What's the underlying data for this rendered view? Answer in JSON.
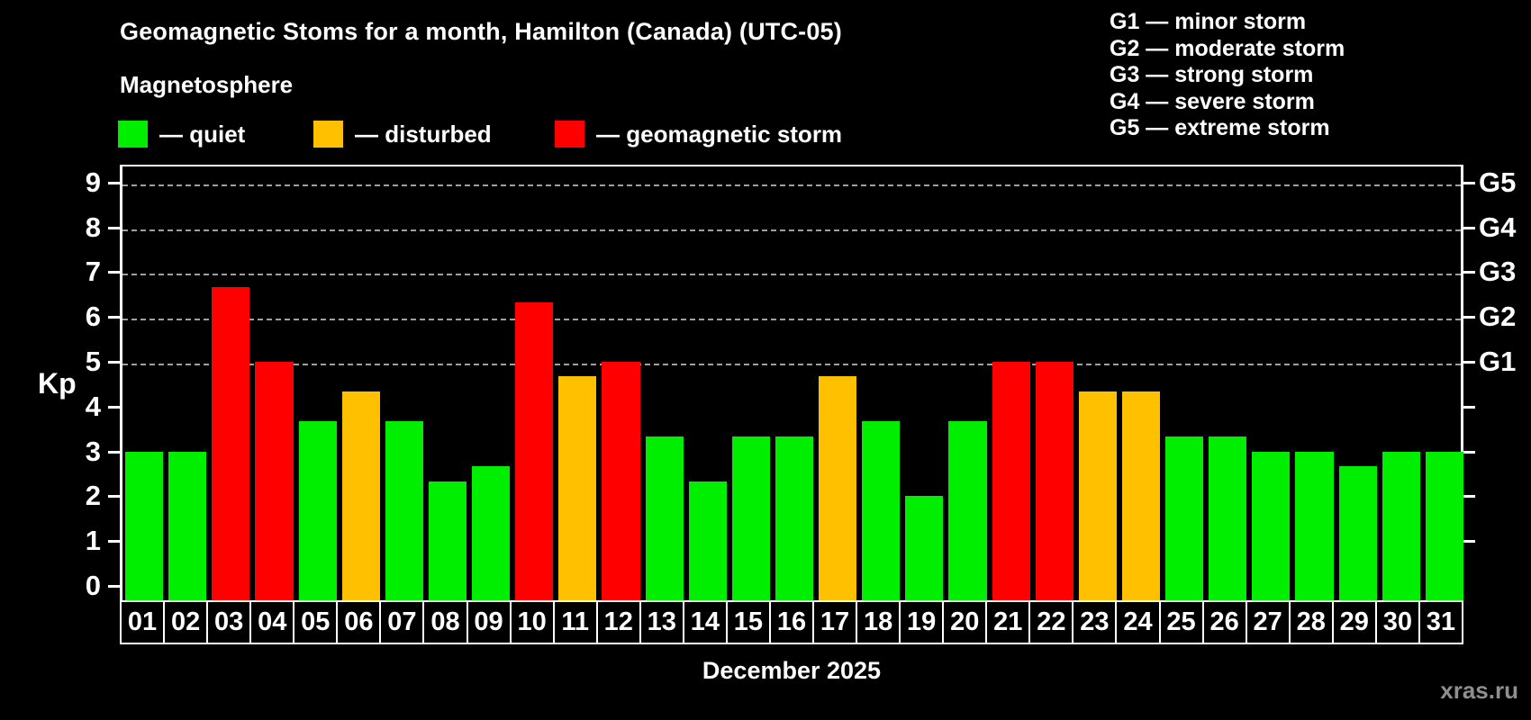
{
  "header": {
    "title": "Geomagnetic Stoms for a month, Hamilton (Canada) (UTC-05)",
    "subtitle": "Magnetosphere"
  },
  "legend": {
    "items": [
      {
        "label": "— quiet",
        "status": "quiet",
        "x": 131
      },
      {
        "label": "— disturbed",
        "status": "disturbed",
        "x": 348
      },
      {
        "label": "— geomagnetic storm",
        "status": "storm",
        "x": 616
      }
    ]
  },
  "g_legend": {
    "lines": [
      "G1 — minor storm",
      "G2 — moderate storm",
      "G3 — strong storm",
      "G4 — severe storm",
      "G5 — extreme storm"
    ]
  },
  "colors": {
    "quiet": "#00ee00",
    "disturbed": "#ffc000",
    "storm": "#ff0000",
    "background": "#000000",
    "text": "#ffffff",
    "gridline": "#a0a0a0",
    "watermark": "#8f8f8f"
  },
  "chart_data": {
    "type": "bar",
    "title": "Geomagnetic Stoms for a month, Hamilton (Canada) (UTC-05)",
    "subtitle": "Magnetosphere",
    "xlabel": "December 2025",
    "ylabel": "Kp",
    "ylim": [
      0,
      9.4
    ],
    "grid": "horizontal dashed lines at Kp 5-9 (G1-G5 levels)",
    "legend_position": "top-left (status colors), top-right (G scale)",
    "categories": [
      "01",
      "02",
      "03",
      "04",
      "05",
      "06",
      "07",
      "08",
      "09",
      "10",
      "11",
      "12",
      "13",
      "14",
      "15",
      "16",
      "17",
      "18",
      "19",
      "20",
      "21",
      "22",
      "23",
      "24",
      "25",
      "26",
      "27",
      "28",
      "29",
      "30",
      "31"
    ],
    "values": [
      3.0,
      3.0,
      6.67,
      5.0,
      3.67,
      4.33,
      3.67,
      2.33,
      2.67,
      6.33,
      4.67,
      5.0,
      3.33,
      2.33,
      3.33,
      3.33,
      4.67,
      3.67,
      2.0,
      3.67,
      5.0,
      5.0,
      4.33,
      4.33,
      3.33,
      3.33,
      3.0,
      3.0,
      2.67,
      3.0,
      3.0
    ],
    "statuses": [
      "quiet",
      "quiet",
      "storm",
      "storm",
      "quiet",
      "disturbed",
      "quiet",
      "quiet",
      "quiet",
      "storm",
      "disturbed",
      "storm",
      "quiet",
      "quiet",
      "quiet",
      "quiet",
      "disturbed",
      "quiet",
      "quiet",
      "quiet",
      "storm",
      "storm",
      "disturbed",
      "disturbed",
      "quiet",
      "quiet",
      "quiet",
      "quiet",
      "quiet",
      "quiet",
      "quiet"
    ],
    "left_tick_labels": [
      0,
      1,
      2,
      3,
      4,
      5,
      6,
      7,
      8,
      9
    ],
    "gridline_levels": [
      5,
      6,
      7,
      8,
      9
    ],
    "right_axis_labels": [
      {
        "level": 5,
        "label": "G1"
      },
      {
        "level": 6,
        "label": "G2"
      },
      {
        "level": 7,
        "label": "G3"
      },
      {
        "level": 8,
        "label": "G4"
      },
      {
        "level": 9,
        "label": "G5"
      }
    ],
    "right_tick_levels": [
      1,
      2,
      3,
      4,
      5,
      6,
      7,
      8,
      9
    ]
  },
  "footer": {
    "month_label": "December 2025",
    "watermark": "xras.ru"
  }
}
